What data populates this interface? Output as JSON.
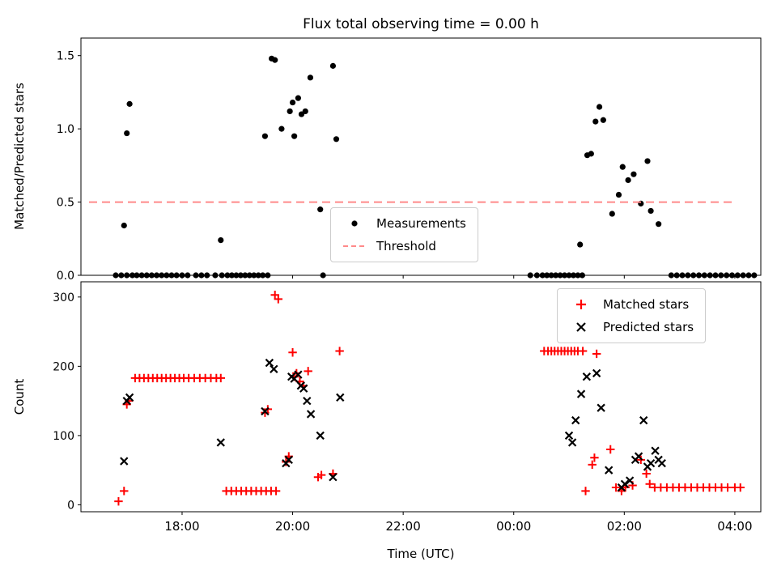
{
  "figure": {
    "title": "Flux total observing time = 0.00 h",
    "xlabel": "Time (UTC)"
  },
  "chart_data": [
    {
      "type": "scatter",
      "title": "Flux total observing time = 0.00 h",
      "ylabel": "Matched/Predicted stars",
      "x_unit": "hours since 16:00 UTC",
      "xlim": [
        0.17,
        12.47
      ],
      "ylim": [
        0,
        1.62
      ],
      "yticks": [
        0.0,
        0.5,
        1.0,
        1.5
      ],
      "ytick_labels": [
        "0.0",
        "0.5",
        "1.0",
        "1.5"
      ],
      "xticks": [
        2,
        4,
        6,
        8,
        10,
        12
      ],
      "xtick_labels": [
        "18:00",
        "20:00",
        "22:00",
        "00:00",
        "02:00",
        "04:00"
      ],
      "xtick_labels_visible": false,
      "legend_position": "lower center",
      "grid": false,
      "series": [
        {
          "name": "Measurements",
          "marker": "dot",
          "color": "#000000",
          "points": [
            [
              0.8,
              0
            ],
            [
              0.9,
              0
            ],
            [
              1.0,
              0
            ],
            [
              1.1,
              0
            ],
            [
              1.18,
              0
            ],
            [
              1.27,
              0
            ],
            [
              1.36,
              0
            ],
            [
              1.45,
              0
            ],
            [
              1.54,
              0
            ],
            [
              1.63,
              0
            ],
            [
              1.72,
              0
            ],
            [
              1.81,
              0
            ],
            [
              1.9,
              0
            ],
            [
              2.0,
              0
            ],
            [
              2.1,
              0
            ],
            [
              2.25,
              0
            ],
            [
              2.35,
              0
            ],
            [
              2.45,
              0
            ],
            [
              2.6,
              0
            ],
            [
              2.72,
              0
            ],
            [
              2.82,
              0
            ],
            [
              2.9,
              0
            ],
            [
              2.98,
              0
            ],
            [
              3.06,
              0
            ],
            [
              3.14,
              0
            ],
            [
              3.22,
              0
            ],
            [
              3.3,
              0
            ],
            [
              3.38,
              0
            ],
            [
              3.46,
              0
            ],
            [
              3.55,
              0
            ],
            [
              4.55,
              0
            ],
            [
              8.3,
              0
            ],
            [
              8.42,
              0
            ],
            [
              8.52,
              0
            ],
            [
              8.6,
              0
            ],
            [
              8.68,
              0
            ],
            [
              8.76,
              0
            ],
            [
              8.84,
              0
            ],
            [
              8.92,
              0
            ],
            [
              9.0,
              0
            ],
            [
              9.08,
              0
            ],
            [
              9.16,
              0
            ],
            [
              9.24,
              0
            ],
            [
              10.85,
              0
            ],
            [
              10.95,
              0
            ],
            [
              11.05,
              0
            ],
            [
              11.15,
              0
            ],
            [
              11.25,
              0
            ],
            [
              11.35,
              0
            ],
            [
              11.45,
              0
            ],
            [
              11.55,
              0
            ],
            [
              11.65,
              0
            ],
            [
              11.75,
              0
            ],
            [
              11.85,
              0
            ],
            [
              11.95,
              0
            ],
            [
              12.05,
              0
            ],
            [
              12.15,
              0
            ],
            [
              12.25,
              0
            ],
            [
              12.35,
              0
            ],
            [
              0.95,
              0.34
            ],
            [
              1.0,
              0.97
            ],
            [
              1.05,
              1.17
            ],
            [
              2.7,
              0.24
            ],
            [
              3.5,
              0.95
            ],
            [
              3.62,
              1.48
            ],
            [
              3.68,
              1.47
            ],
            [
              3.8,
              1.0
            ],
            [
              3.95,
              1.12
            ],
            [
              4.0,
              1.18
            ],
            [
              4.03,
              0.95
            ],
            [
              4.1,
              1.21
            ],
            [
              4.16,
              1.1
            ],
            [
              4.23,
              1.12
            ],
            [
              4.32,
              1.35
            ],
            [
              4.5,
              0.45
            ],
            [
              4.73,
              1.43
            ],
            [
              4.79,
              0.93
            ],
            [
              9.2,
              0.21
            ],
            [
              9.33,
              0.82
            ],
            [
              9.4,
              0.83
            ],
            [
              9.48,
              1.05
            ],
            [
              9.55,
              1.15
            ],
            [
              9.62,
              1.06
            ],
            [
              9.78,
              0.42
            ],
            [
              9.9,
              0.55
            ],
            [
              9.97,
              0.74
            ],
            [
              10.07,
              0.65
            ],
            [
              10.17,
              0.69
            ],
            [
              10.3,
              0.49
            ],
            [
              10.42,
              0.78
            ],
            [
              10.48,
              0.44
            ],
            [
              10.62,
              0.35
            ]
          ]
        },
        {
          "name": "Threshold",
          "type": "hline",
          "y": 0.5,
          "color": "#ff8a8a",
          "dash": true
        }
      ]
    },
    {
      "type": "scatter",
      "ylabel": "Count",
      "xlabel": "Time (UTC)",
      "x_unit": "hours since 16:00 UTC",
      "xlim": [
        0.17,
        12.47
      ],
      "ylim": [
        -10,
        322
      ],
      "yticks": [
        0,
        100,
        200,
        300
      ],
      "ytick_labels": [
        "0",
        "100",
        "200",
        "300"
      ],
      "xticks": [
        2,
        4,
        6,
        8,
        10,
        12
      ],
      "xtick_labels": [
        "18:00",
        "20:00",
        "22:00",
        "00:00",
        "02:00",
        "04:00"
      ],
      "xtick_labels_visible": true,
      "legend_position": "upper right",
      "grid": false,
      "series": [
        {
          "name": "Matched stars",
          "marker": "plus",
          "color": "#ff0000",
          "points": [
            [
              0.85,
              5
            ],
            [
              0.95,
              20
            ],
            [
              1.0,
              145
            ],
            [
              1.04,
              150
            ],
            [
              1.15,
              183
            ],
            [
              1.23,
              183
            ],
            [
              1.31,
              183
            ],
            [
              1.39,
              183
            ],
            [
              1.47,
              183
            ],
            [
              1.55,
              183
            ],
            [
              1.63,
              183
            ],
            [
              1.71,
              183
            ],
            [
              1.79,
              183
            ],
            [
              1.87,
              183
            ],
            [
              1.95,
              183
            ],
            [
              2.03,
              183
            ],
            [
              2.12,
              183
            ],
            [
              2.22,
              183
            ],
            [
              2.32,
              183
            ],
            [
              2.42,
              183
            ],
            [
              2.52,
              183
            ],
            [
              2.62,
              183
            ],
            [
              2.7,
              183
            ],
            [
              2.8,
              20
            ],
            [
              2.89,
              20
            ],
            [
              2.98,
              20
            ],
            [
              3.07,
              20
            ],
            [
              3.16,
              20
            ],
            [
              3.25,
              20
            ],
            [
              3.34,
              20
            ],
            [
              3.43,
              20
            ],
            [
              3.52,
              20
            ],
            [
              3.61,
              20
            ],
            [
              3.7,
              20
            ],
            [
              3.5,
              133
            ],
            [
              3.55,
              138
            ],
            [
              3.68,
              303
            ],
            [
              3.74,
              297
            ],
            [
              3.88,
              62
            ],
            [
              3.93,
              70
            ],
            [
              4.0,
              220
            ],
            [
              4.03,
              185
            ],
            [
              4.07,
              190
            ],
            [
              4.13,
              178
            ],
            [
              4.19,
              172
            ],
            [
              4.28,
              193
            ],
            [
              4.46,
              40
            ],
            [
              4.52,
              43
            ],
            [
              4.73,
              45
            ],
            [
              4.85,
              222
            ],
            [
              8.55,
              222
            ],
            [
              8.62,
              222
            ],
            [
              8.68,
              222
            ],
            [
              8.74,
              222
            ],
            [
              8.8,
              222
            ],
            [
              8.86,
              222
            ],
            [
              8.92,
              222
            ],
            [
              8.98,
              222
            ],
            [
              9.04,
              222
            ],
            [
              9.1,
              222
            ],
            [
              9.16,
              222
            ],
            [
              9.25,
              222
            ],
            [
              9.3,
              20
            ],
            [
              9.42,
              58
            ],
            [
              9.46,
              68
            ],
            [
              9.5,
              218
            ],
            [
              9.75,
              80
            ],
            [
              9.85,
              25
            ],
            [
              9.95,
              20
            ],
            [
              10.02,
              25
            ],
            [
              10.15,
              28
            ],
            [
              10.3,
              65
            ],
            [
              10.4,
              45
            ],
            [
              10.46,
              30
            ],
            [
              10.55,
              25
            ],
            [
              10.66,
              25
            ],
            [
              10.77,
              25
            ],
            [
              10.88,
              25
            ],
            [
              10.99,
              25
            ],
            [
              11.1,
              25
            ],
            [
              11.21,
              25
            ],
            [
              11.32,
              25
            ],
            [
              11.43,
              25
            ],
            [
              11.54,
              25
            ],
            [
              11.65,
              25
            ],
            [
              11.76,
              25
            ],
            [
              11.87,
              25
            ],
            [
              12.0,
              25
            ],
            [
              12.1,
              25
            ]
          ]
        },
        {
          "name": "Predicted stars",
          "marker": "x",
          "color": "#000000",
          "points": [
            [
              0.95,
              63
            ],
            [
              1.0,
              150
            ],
            [
              1.05,
              155
            ],
            [
              2.7,
              90
            ],
            [
              3.5,
              135
            ],
            [
              3.58,
              205
            ],
            [
              3.66,
              196
            ],
            [
              3.88,
              60
            ],
            [
              3.93,
              65
            ],
            [
              3.98,
              185
            ],
            [
              4.03,
              182
            ],
            [
              4.1,
              188
            ],
            [
              4.15,
              172
            ],
            [
              4.2,
              168
            ],
            [
              4.26,
              150
            ],
            [
              4.33,
              131
            ],
            [
              4.5,
              100
            ],
            [
              4.73,
              40
            ],
            [
              4.86,
              155
            ],
            [
              9.0,
              100
            ],
            [
              9.06,
              90
            ],
            [
              9.12,
              122
            ],
            [
              9.22,
              160
            ],
            [
              9.32,
              185
            ],
            [
              9.5,
              190
            ],
            [
              9.58,
              140
            ],
            [
              9.72,
              50
            ],
            [
              9.95,
              25
            ],
            [
              10.01,
              30
            ],
            [
              10.1,
              35
            ],
            [
              10.2,
              65
            ],
            [
              10.26,
              70
            ],
            [
              10.35,
              122
            ],
            [
              10.42,
              55
            ],
            [
              10.48,
              60
            ],
            [
              10.56,
              78
            ],
            [
              10.62,
              65
            ],
            [
              10.68,
              60
            ]
          ]
        }
      ]
    }
  ]
}
